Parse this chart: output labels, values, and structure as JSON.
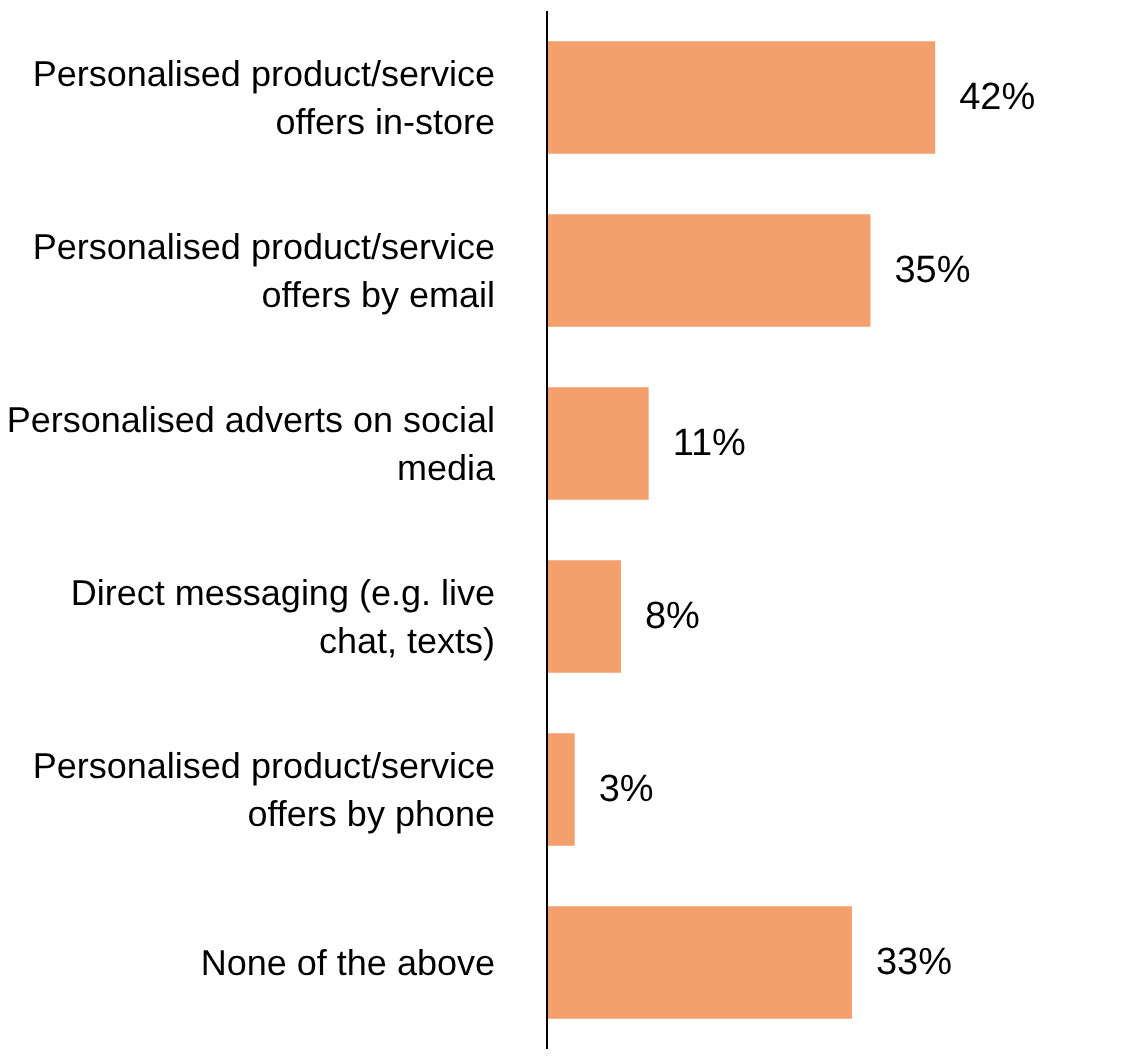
{
  "chart_data": {
    "type": "bar",
    "orientation": "horizontal",
    "categories": [
      "Personalised product/service offers in-store",
      "Personalised product/service offers by email",
      "Personalised adverts on social media",
      "Direct messaging (e.g. live chat, texts)",
      "Personalised product/service offers by phone",
      "None of the above"
    ],
    "values": [
      42,
      35,
      11,
      8,
      3,
      33
    ],
    "value_labels": [
      "42%",
      "35%",
      "11%",
      "8%",
      "3%",
      "33%"
    ],
    "color": "#f4a06c",
    "tick_labels": "y",
    "grid": false
  }
}
